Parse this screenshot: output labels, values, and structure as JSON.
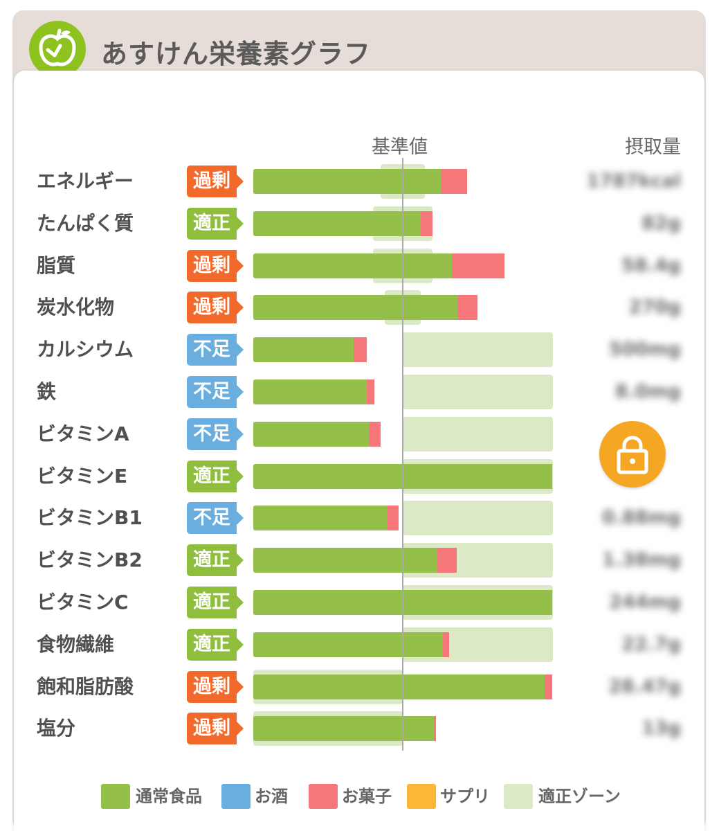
{
  "app": {
    "title": "あすけん栄養素グラフ",
    "logo_icon": "apple-scale-icon"
  },
  "chart_data": {
    "type": "bar",
    "column_headers": {
      "baseline": "基準値",
      "intake": "摂取量"
    },
    "categories": [
      "エネルギー",
      "たんぱく質",
      "脂質",
      "炭水化物",
      "カルシウム",
      "鉄",
      "ビタミンA",
      "ビタミンE",
      "ビタミンB1",
      "ビタミンB2",
      "ビタミンC",
      "食物繊維",
      "飽和脂肪酸",
      "塩分"
    ],
    "status": [
      "過剰",
      "適正",
      "過剰",
      "過剰",
      "不足",
      "不足",
      "不足",
      "適正",
      "不足",
      "適正",
      "適正",
      "適正",
      "過剰",
      "過剰"
    ],
    "status_colors": {
      "過剰": "#f2692c",
      "適正": "#8fbe3f",
      "不足": "#6aaee0"
    },
    "baseline_percent": 100,
    "series": [
      {
        "name": "通常食品",
        "color": "#93bf4a",
        "values": [
          126,
          112,
          133,
          137,
          67,
          76,
          78,
          200,
          90,
          123,
          200,
          127,
          195,
          121
        ]
      },
      {
        "name": "お菓子",
        "color": "#f6777a",
        "values": [
          17,
          8,
          35,
          13,
          9,
          5,
          7,
          0,
          7,
          13,
          0,
          4,
          5,
          1
        ]
      }
    ],
    "appropriate_zone_percent": [
      [
        85,
        115
      ],
      [
        80,
        120
      ],
      [
        80,
        120
      ],
      [
        88,
        112
      ],
      [
        100,
        200
      ],
      [
        100,
        200
      ],
      [
        100,
        200
      ],
      [
        100,
        200
      ],
      [
        100,
        200
      ],
      [
        100,
        200
      ],
      [
        100,
        200
      ],
      [
        100,
        200
      ],
      [
        0,
        100
      ],
      [
        0,
        100
      ]
    ],
    "intake_values": [
      "1787kcal",
      "82g",
      "58.4g",
      "270g",
      "500mg",
      "8.0mg",
      "",
      "",
      "0.88mg",
      "1.38mg",
      "244mg",
      "22.7g",
      "28.47g",
      "13g"
    ],
    "legend": [
      {
        "label": "通常食品",
        "color": "#93bf4a"
      },
      {
        "label": "お酒",
        "color": "#6aaee0"
      },
      {
        "label": "お菓子",
        "color": "#f6777a"
      },
      {
        "label": "サプリ",
        "color": "#fbb735"
      },
      {
        "label": "適正ゾーン",
        "color": "#dbe9c6"
      }
    ]
  },
  "lock_button": {
    "icon": "lock-icon",
    "color": "#f5a623"
  }
}
